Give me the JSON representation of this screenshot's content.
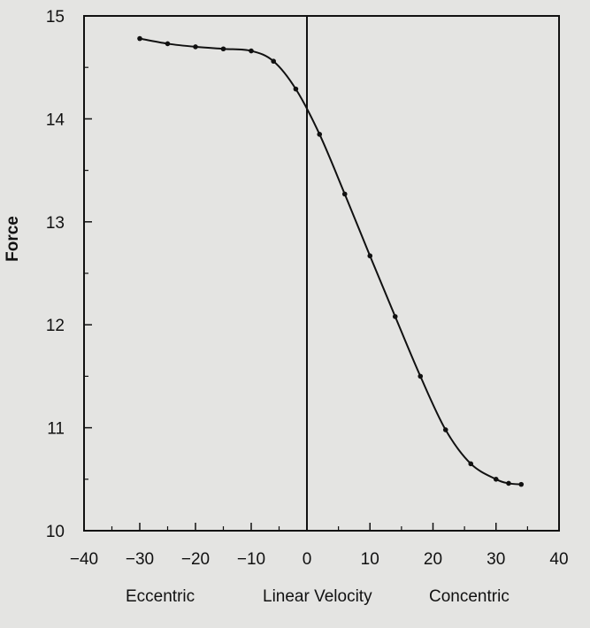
{
  "chart_data": {
    "type": "line",
    "title": "",
    "xlabel": "Linear Velocity",
    "ylabel": "Force",
    "x_region_labels": [
      "Eccentric",
      "Concentric"
    ],
    "xlim": [
      -40,
      40
    ],
    "ylim": [
      10,
      15
    ],
    "x_ticks": [
      -40,
      -30,
      -20,
      -10,
      0,
      10,
      20,
      30,
      40
    ],
    "y_ticks": [
      10,
      11,
      12,
      13,
      14,
      15
    ],
    "grid": false,
    "series": [
      {
        "x": [
          -30,
          -25,
          -20,
          -15,
          -10,
          -6,
          -2,
          2,
          6,
          10,
          14,
          18,
          22,
          26,
          30,
          32,
          34
        ],
        "y": [
          14.78,
          14.73,
          14.7,
          14.68,
          14.66,
          14.56,
          14.29,
          13.85,
          13.27,
          12.67,
          12.08,
          11.5,
          10.98,
          10.65,
          10.5,
          10.46,
          10.45
        ]
      }
    ],
    "colors": {
      "line": "#111111",
      "background": "#e4e4e2"
    }
  }
}
